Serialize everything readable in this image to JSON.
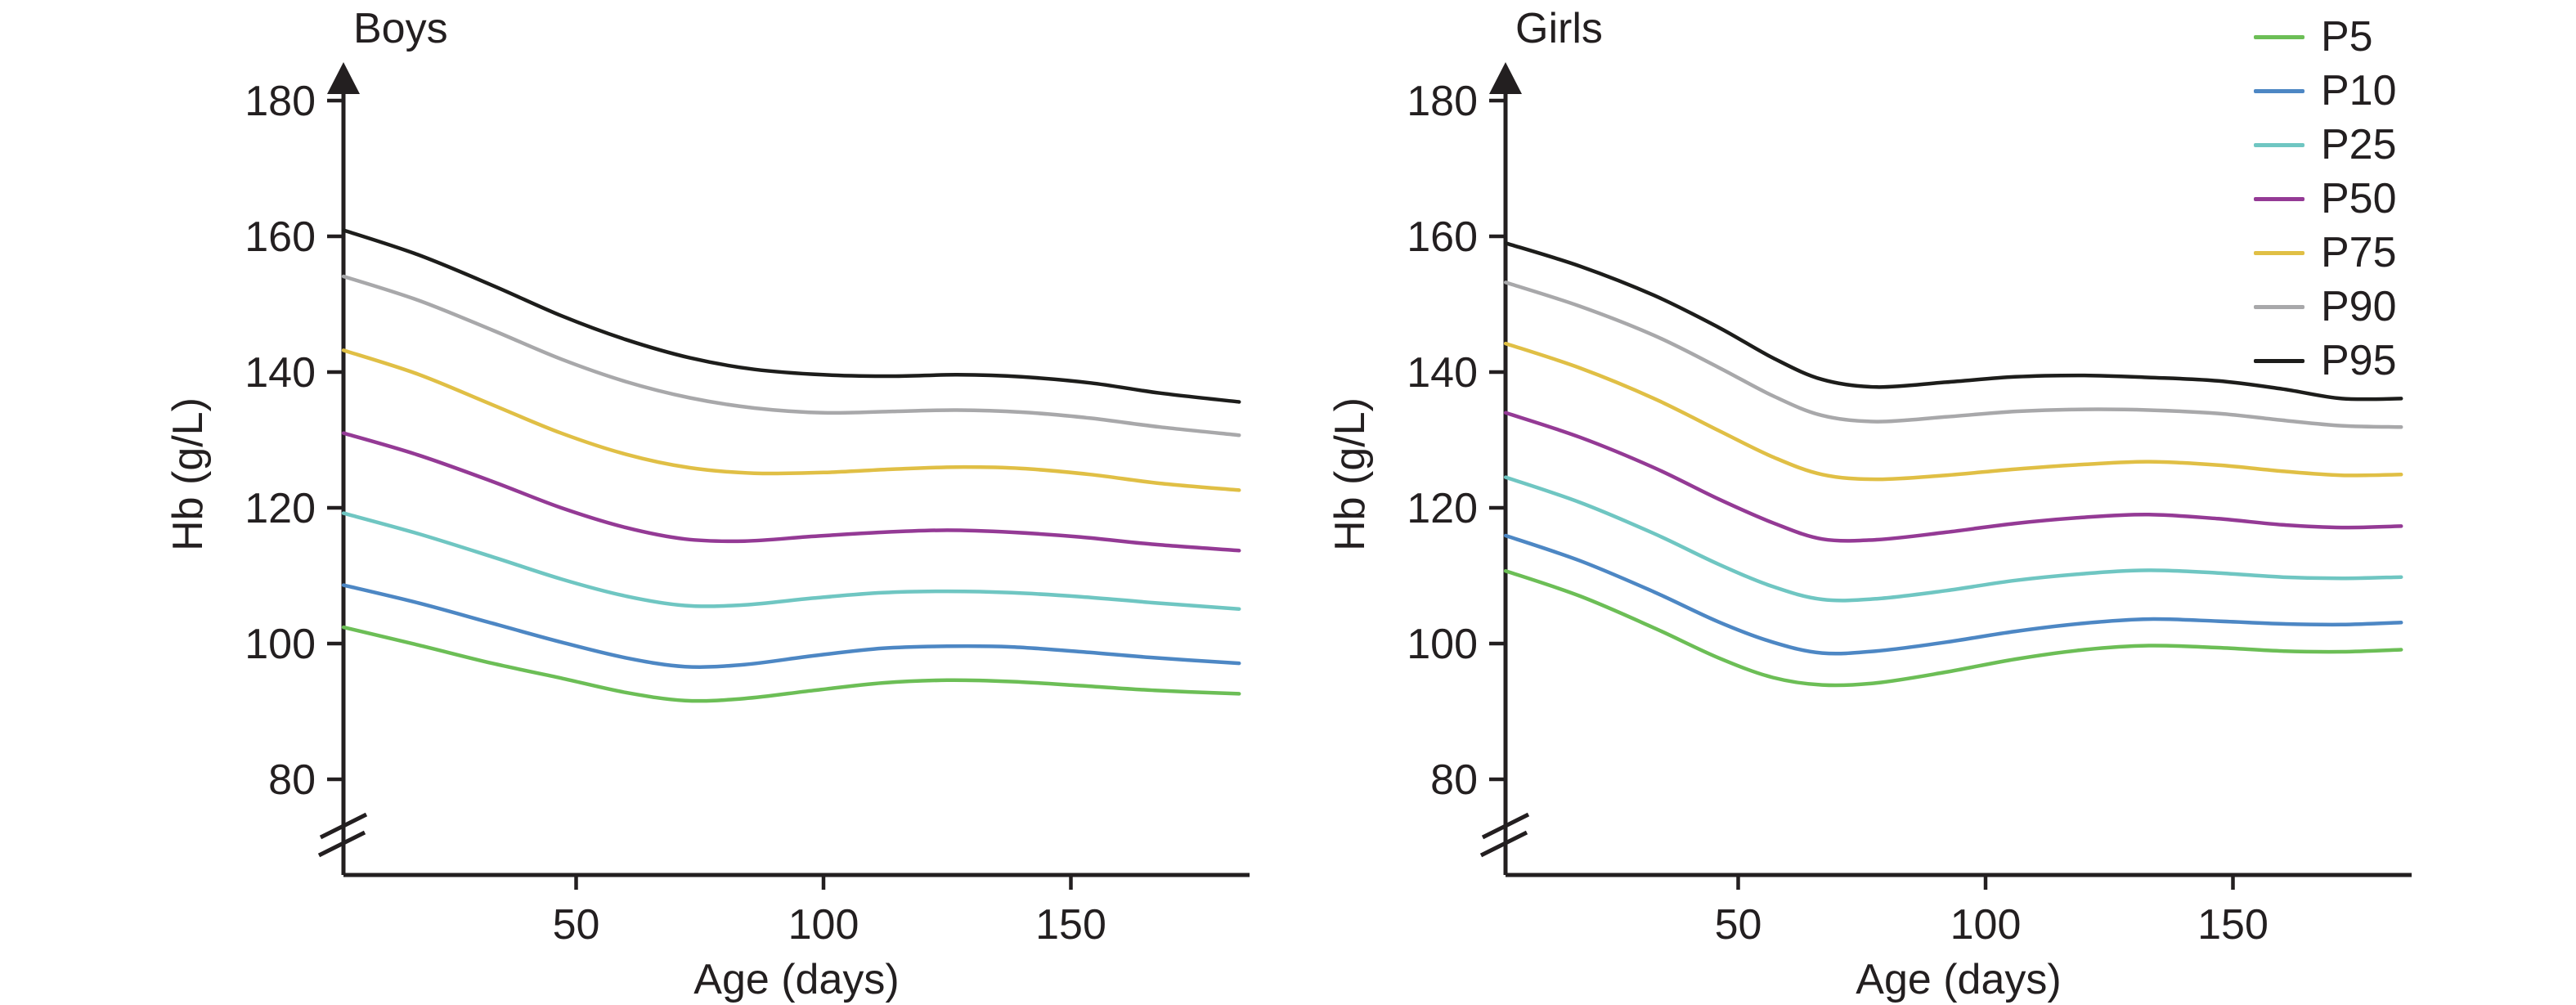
{
  "figure": {
    "background": "#ffffff",
    "ink_color": "#231f20"
  },
  "legend": {
    "position": "top-right",
    "items": [
      {
        "label": "P5",
        "color": "#6cbe56"
      },
      {
        "label": "P10",
        "color": "#4d87c4"
      },
      {
        "label": "P25",
        "color": "#6fc6c2"
      },
      {
        "label": "P50",
        "color": "#943a95"
      },
      {
        "label": "P75",
        "color": "#e0bf45"
      },
      {
        "label": "P90",
        "color": "#a8a8aa"
      },
      {
        "label": "P95",
        "color": "#1d1d1b"
      }
    ]
  },
  "chart_data": [
    {
      "type": "line",
      "title": "Boys",
      "xlabel": "Age (days)",
      "ylabel": "Hb (g/L)",
      "x_ticks": [
        50,
        100,
        150
      ],
      "y_ticks": [
        180,
        160,
        140,
        120,
        100,
        80
      ],
      "x_range_days": [
        3,
        184
      ],
      "ylim": [
        80,
        185
      ],
      "grid": false,
      "y_axis_arrow": true,
      "axis_break_below": 80,
      "series": [
        {
          "name": "P5",
          "color": "#6cbe56",
          "points": [
            [
              3,
              102.4
            ],
            [
              18,
              99.8
            ],
            [
              33,
              97.1
            ],
            [
              47,
              94.9
            ],
            [
              60,
              92.8
            ],
            [
              72,
              91.6
            ],
            [
              84,
              91.9
            ],
            [
              98,
              93.1
            ],
            [
              112,
              94.2
            ],
            [
              125,
              94.6
            ],
            [
              138,
              94.4
            ],
            [
              152,
              93.8
            ],
            [
              167,
              93.1
            ],
            [
              184,
              92.6
            ]
          ]
        },
        {
          "name": "P10",
          "color": "#4d87c4",
          "points": [
            [
              3,
              108.6
            ],
            [
              18,
              106.0
            ],
            [
              33,
              103.0
            ],
            [
              47,
              100.2
            ],
            [
              60,
              97.9
            ],
            [
              72,
              96.6
            ],
            [
              84,
              96.9
            ],
            [
              98,
              98.2
            ],
            [
              112,
              99.3
            ],
            [
              125,
              99.6
            ],
            [
              138,
              99.5
            ],
            [
              152,
              98.8
            ],
            [
              167,
              97.9
            ],
            [
              184,
              97.1
            ]
          ]
        },
        {
          "name": "P25",
          "color": "#6fc6c2",
          "points": [
            [
              3,
              119.2
            ],
            [
              18,
              116.2
            ],
            [
              33,
              112.8
            ],
            [
              47,
              109.5
            ],
            [
              60,
              107.0
            ],
            [
              72,
              105.6
            ],
            [
              84,
              105.7
            ],
            [
              98,
              106.7
            ],
            [
              112,
              107.5
            ],
            [
              125,
              107.7
            ],
            [
              138,
              107.5
            ],
            [
              152,
              106.9
            ],
            [
              167,
              106.0
            ],
            [
              184,
              105.1
            ]
          ]
        },
        {
          "name": "P50",
          "color": "#943a95",
          "points": [
            [
              3,
              131.0
            ],
            [
              18,
              127.8
            ],
            [
              33,
              123.9
            ],
            [
              47,
              120.0
            ],
            [
              60,
              117.1
            ],
            [
              72,
              115.4
            ],
            [
              84,
              115.1
            ],
            [
              98,
              115.8
            ],
            [
              112,
              116.4
            ],
            [
              125,
              116.7
            ],
            [
              138,
              116.4
            ],
            [
              152,
              115.7
            ],
            [
              167,
              114.6
            ],
            [
              184,
              113.7
            ]
          ]
        },
        {
          "name": "P75",
          "color": "#e0bf45",
          "points": [
            [
              3,
              143.2
            ],
            [
              18,
              139.7
            ],
            [
              33,
              135.2
            ],
            [
              47,
              131.0
            ],
            [
              60,
              127.9
            ],
            [
              73,
              125.9
            ],
            [
              86,
              125.1
            ],
            [
              100,
              125.2
            ],
            [
              114,
              125.7
            ],
            [
              127,
              126.0
            ],
            [
              140,
              125.8
            ],
            [
              154,
              124.9
            ],
            [
              168,
              123.6
            ],
            [
              184,
              122.6
            ]
          ]
        },
        {
          "name": "P90",
          "color": "#a8a8aa",
          "points": [
            [
              3,
              154.1
            ],
            [
              18,
              150.6
            ],
            [
              33,
              146.2
            ],
            [
              47,
              141.9
            ],
            [
              60,
              138.6
            ],
            [
              73,
              136.2
            ],
            [
              86,
              134.7
            ],
            [
              100,
              134.0
            ],
            [
              114,
              134.2
            ],
            [
              127,
              134.4
            ],
            [
              140,
              134.1
            ],
            [
              154,
              133.2
            ],
            [
              168,
              131.9
            ],
            [
              184,
              130.7
            ]
          ]
        },
        {
          "name": "P95",
          "color": "#1d1d1b",
          "points": [
            [
              3,
              160.9
            ],
            [
              18,
              157.3
            ],
            [
              33,
              152.8
            ],
            [
              47,
              148.3
            ],
            [
              60,
              144.8
            ],
            [
              73,
              142.1
            ],
            [
              86,
              140.4
            ],
            [
              100,
              139.6
            ],
            [
              114,
              139.4
            ],
            [
              127,
              139.6
            ],
            [
              140,
              139.3
            ],
            [
              154,
              138.4
            ],
            [
              168,
              136.9
            ],
            [
              184,
              135.6
            ]
          ]
        }
      ]
    },
    {
      "type": "line",
      "title": "Girls",
      "xlabel": "Age (days)",
      "ylabel": "Hb (g/L)",
      "x_ticks": [
        50,
        100,
        150
      ],
      "y_ticks": [
        180,
        160,
        140,
        120,
        100,
        80
      ],
      "x_range_days": [
        3,
        184
      ],
      "ylim": [
        80,
        185
      ],
      "grid": false,
      "y_axis_arrow": true,
      "axis_break_below": 80,
      "series": [
        {
          "name": "P5",
          "color": "#6cbe56",
          "points": [
            [
              3,
              110.7
            ],
            [
              18,
              107.0
            ],
            [
              33,
              102.3
            ],
            [
              46,
              97.9
            ],
            [
              57,
              95.0
            ],
            [
              67,
              93.9
            ],
            [
              78,
              94.2
            ],
            [
              92,
              95.8
            ],
            [
              106,
              97.7
            ],
            [
              120,
              99.1
            ],
            [
              133,
              99.7
            ],
            [
              147,
              99.4
            ],
            [
              160,
              98.9
            ],
            [
              172,
              98.8
            ],
            [
              184,
              99.1
            ]
          ]
        },
        {
          "name": "P10",
          "color": "#4d87c4",
          "points": [
            [
              3,
              115.9
            ],
            [
              18,
              112.2
            ],
            [
              33,
              107.6
            ],
            [
              46,
              103.2
            ],
            [
              57,
              100.2
            ],
            [
              67,
              98.6
            ],
            [
              78,
              98.9
            ],
            [
              92,
              100.2
            ],
            [
              106,
              101.8
            ],
            [
              120,
              103.0
            ],
            [
              133,
              103.6
            ],
            [
              147,
              103.3
            ],
            [
              160,
              102.9
            ],
            [
              172,
              102.8
            ],
            [
              184,
              103.1
            ]
          ]
        },
        {
          "name": "P25",
          "color": "#6fc6c2",
          "points": [
            [
              3,
              124.5
            ],
            [
              18,
              120.8
            ],
            [
              33,
              116.2
            ],
            [
              46,
              111.7
            ],
            [
              57,
              108.4
            ],
            [
              67,
              106.5
            ],
            [
              78,
              106.6
            ],
            [
              92,
              107.8
            ],
            [
              106,
              109.3
            ],
            [
              120,
              110.3
            ],
            [
              133,
              110.8
            ],
            [
              147,
              110.4
            ],
            [
              160,
              109.8
            ],
            [
              172,
              109.6
            ],
            [
              184,
              109.8
            ]
          ]
        },
        {
          "name": "P50",
          "color": "#943a95",
          "points": [
            [
              3,
              134.0
            ],
            [
              18,
              130.4
            ],
            [
              33,
              125.9
            ],
            [
              46,
              121.3
            ],
            [
              57,
              117.8
            ],
            [
              67,
              115.4
            ],
            [
              78,
              115.3
            ],
            [
              92,
              116.4
            ],
            [
              106,
              117.7
            ],
            [
              120,
              118.6
            ],
            [
              133,
              119.0
            ],
            [
              147,
              118.4
            ],
            [
              160,
              117.5
            ],
            [
              172,
              117.1
            ],
            [
              184,
              117.3
            ]
          ]
        },
        {
          "name": "P75",
          "color": "#e0bf45",
          "points": [
            [
              3,
              144.2
            ],
            [
              18,
              140.6
            ],
            [
              33,
              136.1
            ],
            [
              46,
              131.4
            ],
            [
              57,
              127.5
            ],
            [
              67,
              124.9
            ],
            [
              78,
              124.2
            ],
            [
              92,
              124.8
            ],
            [
              106,
              125.7
            ],
            [
              120,
              126.4
            ],
            [
              133,
              126.8
            ],
            [
              147,
              126.3
            ],
            [
              160,
              125.4
            ],
            [
              172,
              124.8
            ],
            [
              184,
              124.9
            ]
          ]
        },
        {
          "name": "P90",
          "color": "#a8a8aa",
          "points": [
            [
              3,
              153.2
            ],
            [
              18,
              149.7
            ],
            [
              33,
              145.4
            ],
            [
              46,
              140.7
            ],
            [
              57,
              136.5
            ],
            [
              67,
              133.6
            ],
            [
              78,
              132.7
            ],
            [
              92,
              133.4
            ],
            [
              106,
              134.2
            ],
            [
              120,
              134.5
            ],
            [
              133,
              134.4
            ],
            [
              147,
              133.9
            ],
            [
              160,
              132.9
            ],
            [
              172,
              132.1
            ],
            [
              184,
              131.9
            ]
          ]
        },
        {
          "name": "P95",
          "color": "#1d1d1b",
          "points": [
            [
              3,
              159.0
            ],
            [
              18,
              155.6
            ],
            [
              33,
              151.3
            ],
            [
              46,
              146.6
            ],
            [
              57,
              142.1
            ],
            [
              67,
              138.9
            ],
            [
              78,
              137.8
            ],
            [
              92,
              138.5
            ],
            [
              106,
              139.3
            ],
            [
              120,
              139.5
            ],
            [
              133,
              139.2
            ],
            [
              147,
              138.7
            ],
            [
              160,
              137.5
            ],
            [
              172,
              136.1
            ],
            [
              184,
              136.1
            ]
          ]
        }
      ]
    }
  ]
}
